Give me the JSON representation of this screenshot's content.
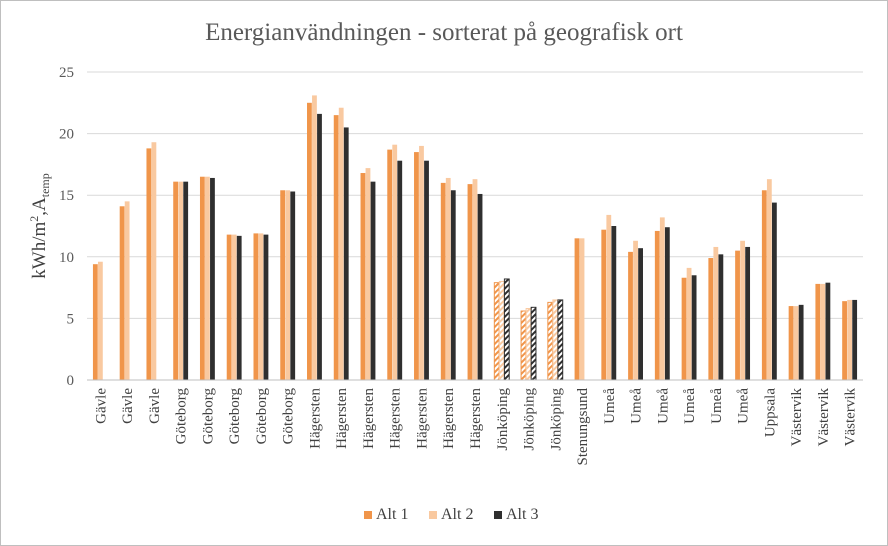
{
  "chart_data": {
    "type": "bar",
    "title": "Energianvändningen - sorterat på geografisk ort",
    "ylabel": {
      "main": "kWh/m",
      "sup": "2",
      "mid": ",A",
      "sub": "temp"
    },
    "ylim": [
      0,
      25
    ],
    "yticks": [
      "0",
      "5",
      "10",
      "15",
      "20",
      "25"
    ],
    "grid": true,
    "legend_position": "bottom",
    "categories": [
      "Gävle",
      "Gävle",
      "Gävle",
      "Göteborg",
      "Göteborg",
      "Göteborg",
      "Göteborg",
      "Göteborg",
      "Hägersten",
      "Hägersten",
      "Hägersten",
      "Hägersten",
      "Hägersten",
      "Hägersten",
      "Hägersten",
      "Jönköping",
      "Jönköping",
      "Jönköping",
      "Stenungsund",
      "Umeå",
      "Umeå",
      "Umeå",
      "Umeå",
      "Umeå",
      "Umeå",
      "Uppsala",
      "Västervik",
      "Västervik",
      "Västervik"
    ],
    "hatched_categories": [
      15,
      16,
      17
    ],
    "series": [
      {
        "name": "Alt 1",
        "color": "#f0954a",
        "values": [
          9.4,
          14.1,
          18.8,
          16.1,
          16.5,
          11.8,
          11.9,
          15.4,
          22.5,
          21.5,
          16.8,
          18.7,
          18.5,
          16.0,
          15.9,
          7.9,
          5.6,
          6.3,
          11.5,
          12.2,
          10.4,
          12.1,
          8.3,
          9.9,
          10.5,
          15.4,
          6.0,
          7.8,
          6.4
        ]
      },
      {
        "name": "Alt 2",
        "color": "#f9c9a0",
        "values": [
          9.6,
          14.5,
          19.3,
          16.1,
          16.5,
          11.8,
          11.9,
          15.4,
          23.1,
          22.1,
          17.2,
          19.1,
          19.0,
          16.4,
          16.3,
          8.0,
          5.8,
          6.5,
          11.5,
          13.4,
          11.3,
          13.2,
          9.1,
          10.8,
          11.3,
          16.3,
          6.0,
          7.8,
          6.5
        ]
      },
      {
        "name": "Alt 3",
        "color": "#2f2f2f",
        "values": [
          null,
          null,
          null,
          16.1,
          16.4,
          11.7,
          11.8,
          15.3,
          21.6,
          20.5,
          16.1,
          17.8,
          17.8,
          15.4,
          15.1,
          8.2,
          5.9,
          6.5,
          null,
          12.5,
          10.7,
          12.4,
          8.5,
          10.2,
          10.8,
          14.4,
          6.1,
          7.9,
          6.5
        ]
      }
    ]
  }
}
